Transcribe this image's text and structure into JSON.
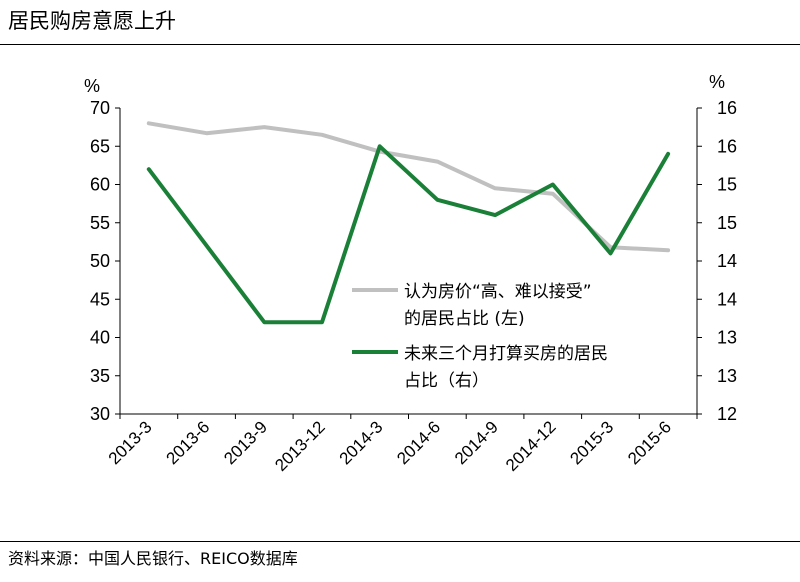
{
  "title": "居民购房意愿上升",
  "source": "资料来源：中国人民银行、REICO数据库",
  "chart_data": {
    "type": "line",
    "categories": [
      "2013-3",
      "2013-6",
      "2013-9",
      "2013-12",
      "2014-3",
      "2014-6",
      "2014-9",
      "2014-12",
      "2015-3",
      "2015-6"
    ],
    "left_axis": {
      "unit": "%",
      "ylim": [
        30,
        70
      ],
      "ticks": [
        30,
        35,
        40,
        45,
        50,
        55,
        60,
        65,
        70
      ]
    },
    "right_axis": {
      "unit": "%",
      "ylim": [
        12,
        16
      ],
      "tick_values": [
        12,
        12.5,
        13,
        13.5,
        14,
        14.5,
        15,
        15.5,
        16
      ],
      "tick_labels": [
        "12",
        "13",
        "13",
        "14",
        "14",
        "15",
        "15",
        "16",
        "16"
      ]
    },
    "series": [
      {
        "name": "认为房价“高、难以接受”的居民占比 (左)",
        "axis": "left",
        "color": "#c0c0c0",
        "values": [
          68.0,
          66.7,
          67.5,
          66.5,
          64.3,
          63.0,
          59.5,
          58.8,
          51.8,
          51.4
        ]
      },
      {
        "name": "未来三个月打算买房的居民占比（右）",
        "axis": "right",
        "color": "#1a7f37",
        "values": [
          15.2,
          14.2,
          13.2,
          13.2,
          15.5,
          14.8,
          14.6,
          15.0,
          14.1,
          15.4
        ]
      }
    ],
    "legend": {
      "position": "center-right",
      "entries": [
        {
          "lines": [
            "认为房价“高、难以接受”",
            "的居民占比 (左)"
          ]
        },
        {
          "lines": [
            "未来三个月打算买房的居民",
            "占比（右）"
          ]
        }
      ]
    },
    "grid": false
  }
}
